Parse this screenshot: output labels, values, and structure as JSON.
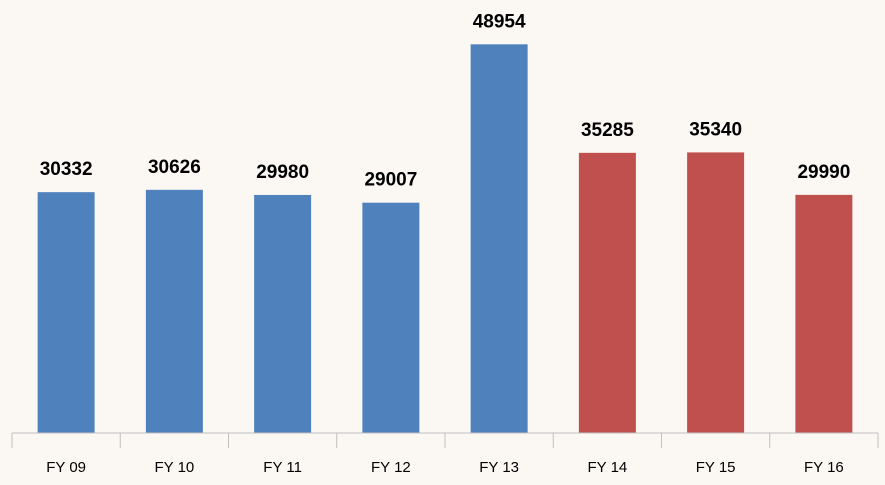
{
  "chart_data": {
    "type": "bar",
    "categories": [
      "FY 09",
      "FY 10",
      "FY 11",
      "FY 12",
      "FY 13",
      "FY 14",
      "FY 15",
      "FY 16"
    ],
    "values": [
      30332,
      30626,
      29980,
      29007,
      48954,
      35285,
      35340,
      29990
    ],
    "colors": [
      "#4f81bd",
      "#4f81bd",
      "#4f81bd",
      "#4f81bd",
      "#4f81bd",
      "#c0504d",
      "#c0504d",
      "#c0504d"
    ],
    "ylim": [
      0,
      50000
    ]
  }
}
